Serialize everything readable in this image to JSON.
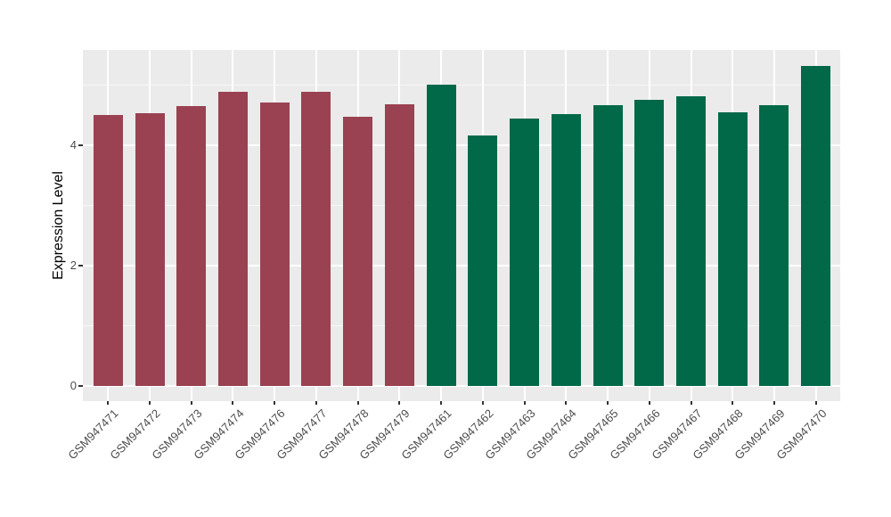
{
  "chart_data": {
    "type": "bar",
    "title": "",
    "ylabel": "Expression Level",
    "xlabel": "",
    "categories": [
      "GSM947471",
      "GSM947472",
      "GSM947473",
      "GSM947474",
      "GSM947476",
      "GSM947477",
      "GSM947478",
      "GSM947479",
      "GSM947461",
      "GSM947462",
      "GSM947463",
      "GSM947464",
      "GSM947465",
      "GSM947466",
      "GSM947467",
      "GSM947468",
      "GSM947469",
      "GSM947470"
    ],
    "values": [
      4.49,
      4.52,
      4.65,
      4.88,
      4.71,
      4.88,
      4.47,
      4.67,
      5.0,
      4.16,
      4.44,
      4.51,
      4.66,
      4.75,
      4.81,
      4.54,
      4.66,
      5.31
    ],
    "colors": [
      "#9A4252",
      "#9A4252",
      "#9A4252",
      "#9A4252",
      "#9A4252",
      "#9A4252",
      "#9A4252",
      "#9A4252",
      "#016948",
      "#016948",
      "#016948",
      "#016948",
      "#016948",
      "#016948",
      "#016948",
      "#016948",
      "#016948",
      "#016948"
    ],
    "palette": {
      "maroon": "#9A4252",
      "green": "#016948"
    },
    "yticks_major": [
      0,
      2,
      4
    ],
    "yticks_minor": [
      1,
      3,
      5
    ],
    "ylim": [
      0,
      5.58
    ],
    "grid": "on",
    "legend": "none",
    "panel_bg": "#EBEBEB",
    "grid_color": "#FFFFFF",
    "tick_label_color": "#4D4D4D"
  }
}
